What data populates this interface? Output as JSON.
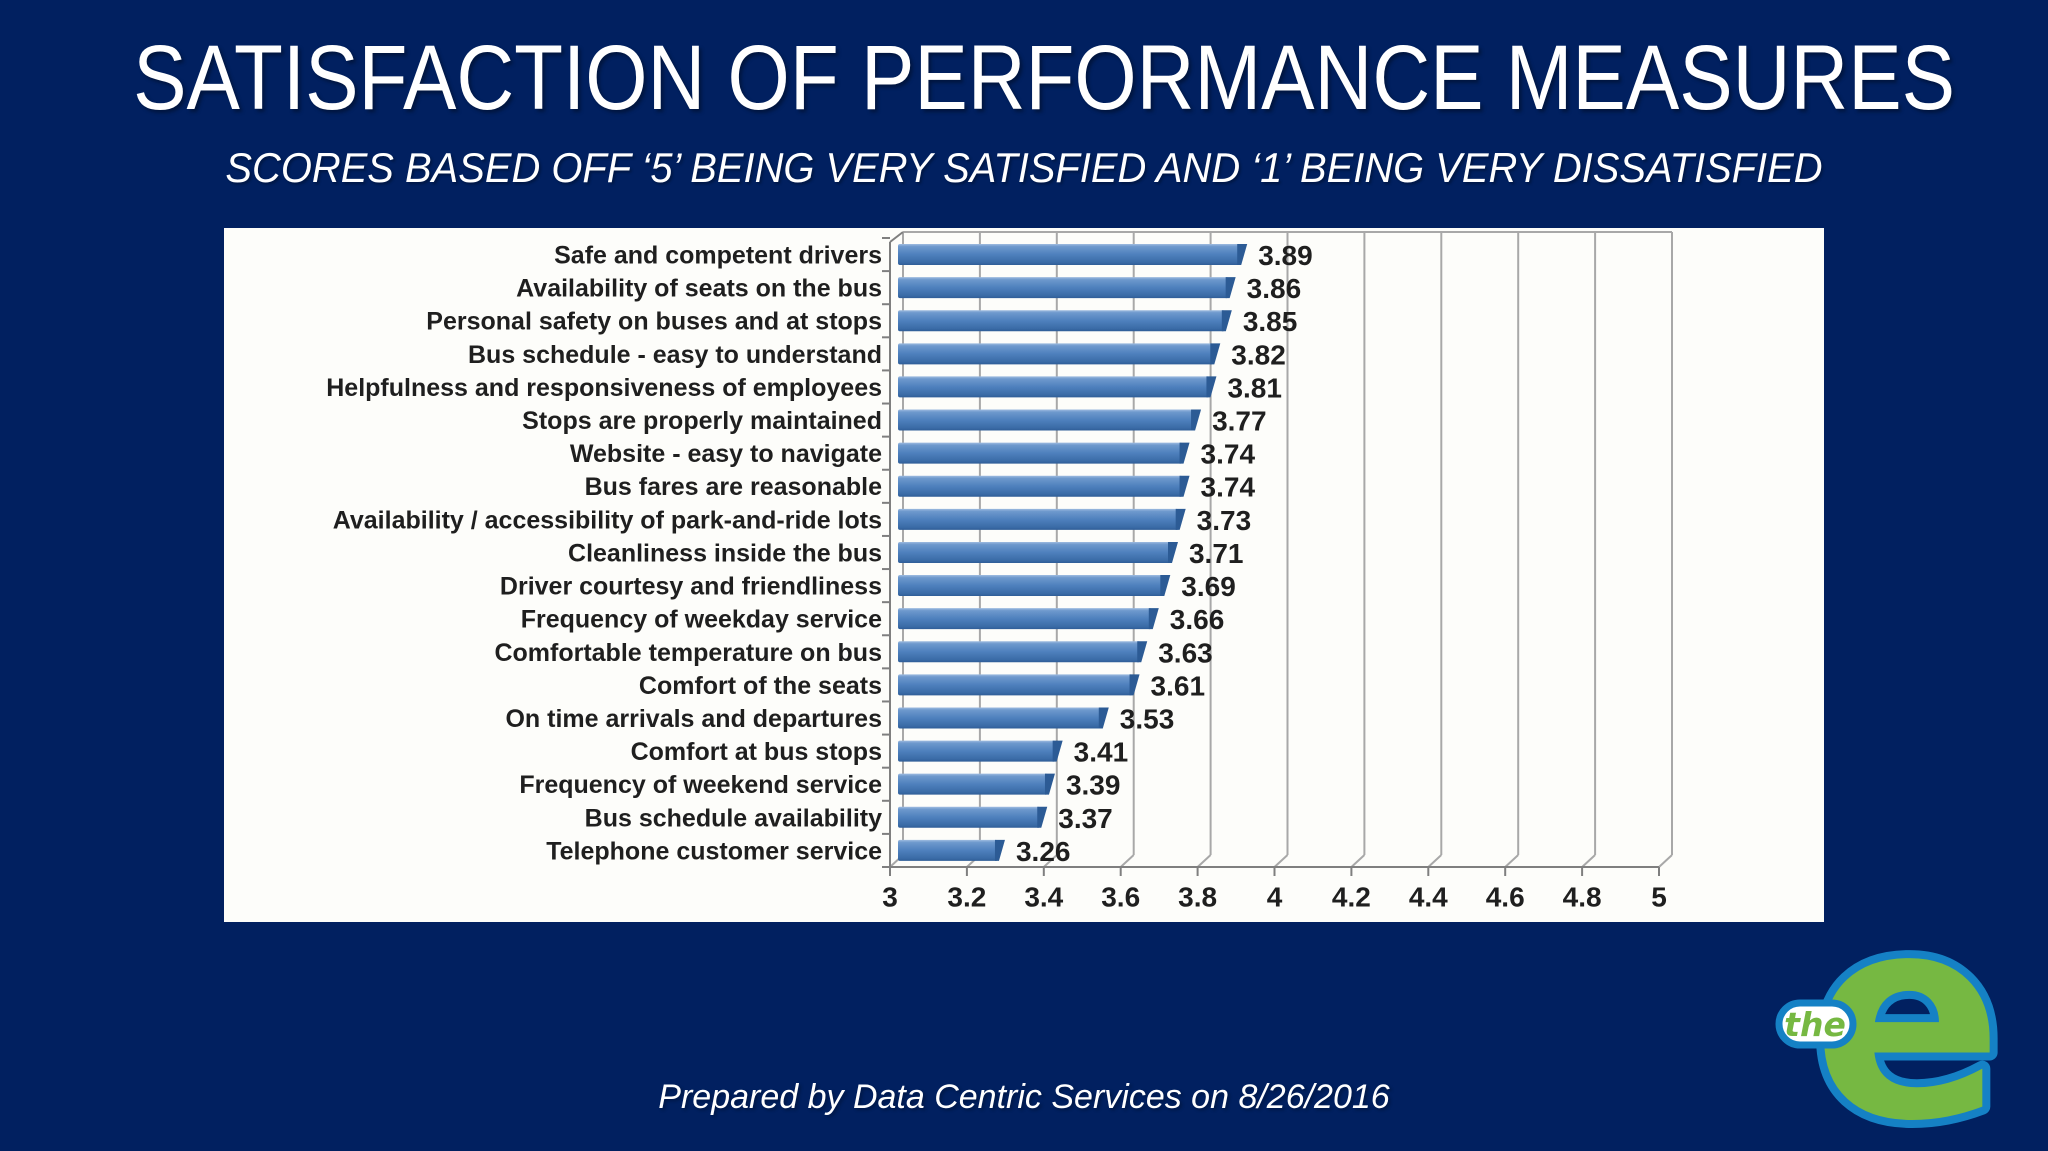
{
  "slide": {
    "title": "SATISFACTION OF PERFORMANCE MEASURES",
    "subtitle": "SCORES BASED OFF ‘5’ BEING VERY SATISFIED AND ‘1’ BEING VERY DISSATISFIED",
    "footer": "Prepared by Data Centric Services on 8/26/2016",
    "background_color": "#012060",
    "title_color": "#FFFFFF"
  },
  "chart_data": {
    "type": "bar",
    "orientation": "horizontal",
    "title": "",
    "xlabel": "",
    "ylabel": "",
    "categories": [
      "Safe and competent drivers",
      "Availability of seats on the bus",
      "Personal safety on buses and at stops",
      "Bus schedule - easy to understand",
      "Helpfulness and responsiveness of employees",
      "Stops are properly maintained",
      "Website - easy to navigate",
      "Bus fares are reasonable",
      "Availability / accessibility of park-and-ride lots",
      "Cleanliness inside the bus",
      "Driver courtesy and friendliness",
      "Frequency of weekday service",
      "Comfortable temperature on bus",
      "Comfort of the seats",
      "On time arrivals and departures",
      "Comfort at bus stops",
      "Frequency of weekend service",
      "Bus schedule availability",
      "Telephone customer service"
    ],
    "values": [
      3.89,
      3.86,
      3.85,
      3.82,
      3.81,
      3.77,
      3.74,
      3.74,
      3.73,
      3.71,
      3.69,
      3.66,
      3.63,
      3.61,
      3.53,
      3.41,
      3.39,
      3.37,
      3.26
    ],
    "value_labels_shown": true,
    "xlim": [
      3,
      5
    ],
    "x_tick_values": [
      3,
      3.2,
      3.4,
      3.6,
      3.8,
      4,
      4.2,
      4.4,
      4.6,
      4.8,
      5
    ],
    "x_tick_labels": [
      "3",
      "3.2",
      "3.4",
      "3.6",
      "3.8",
      "4",
      "4.2",
      "4.4",
      "4.6",
      "4.8",
      "5"
    ],
    "grid": "vertical-3d",
    "legend": "none",
    "plot_bg": "#FDFDFA",
    "bar_color": "#4F81BD",
    "bar_gradient": [
      "#9FBCE0",
      "#6E99CD",
      "#4E80BD",
      "#3A6BA6",
      "#2F5D97"
    ],
    "bar_tip_color": "#2C5B95",
    "gridline_color": "#A8A8A8",
    "axis_color": "#7F7F7F",
    "text_color": "#1F1F1F"
  },
  "logo": {
    "letter": "e",
    "word": "the",
    "green": "#76B842",
    "blue": "#1581C5",
    "pill_fill": "#FFFFFF"
  }
}
